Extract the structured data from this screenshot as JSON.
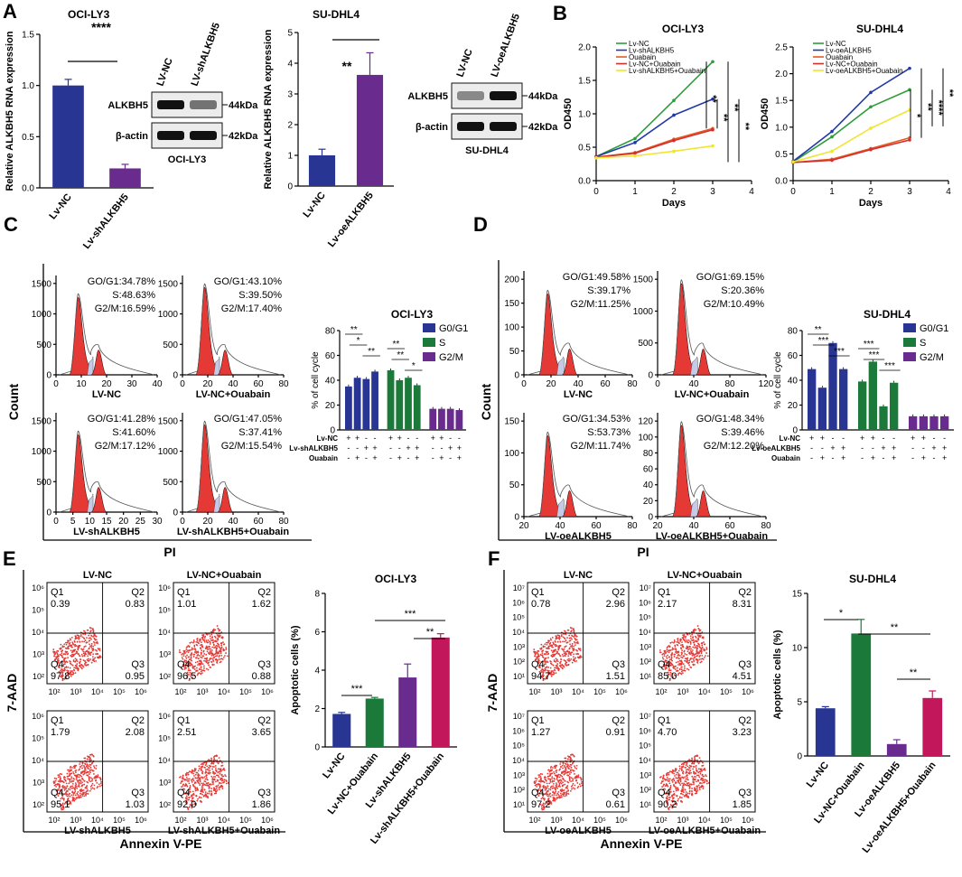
{
  "figure": {
    "panel_letters": [
      "A",
      "B",
      "C",
      "D",
      "E",
      "F"
    ],
    "panel_A": {
      "western": {
        "ocily3": {
          "lanes": [
            "LV-NC",
            "LV-shALKBH5"
          ],
          "rows": [
            {
              "label": "ALKBH5",
              "kda": "44kDa"
            },
            {
              "label": "β-actin",
              "kda": "42kDa"
            }
          ],
          "caption": "OCI-LY3"
        },
        "sudhl4": {
          "lanes": [
            "LV-NC",
            "LV-oeALKBH5"
          ],
          "rows": [
            {
              "label": "ALKBH5",
              "kda": "44kDa"
            },
            {
              "label": "β-actin",
              "kda": "42kDa"
            }
          ],
          "caption": "SU-DHL4"
        }
      }
    },
    "panel_C": {
      "histograms": [
        {
          "label": "LV-NC",
          "stats": [
            "GO/G1:34.78%",
            "S:48.63%",
            "G2/M:16.59%"
          ]
        },
        {
          "label": "LV-NC+Ouabain",
          "stats": [
            "GO/G1:43.10%",
            "S:39.50%",
            "G2/M:17.40%"
          ]
        },
        {
          "label": "LV-shALKBH5",
          "stats": [
            "GO/G1:41.28%",
            "S:41.60%",
            "G2/M:17.12%"
          ]
        },
        {
          "label": "LV-shALKBH5+Ouabain",
          "stats": [
            "GO/G1:47.05%",
            "S:37.41%",
            "G2/M:15.54%"
          ]
        }
      ],
      "ylabel": "Count",
      "xlabel": "PI"
    },
    "panel_D": {
      "histograms": [
        {
          "label": "LV-NC",
          "stats": [
            "GO/G1:49.58%",
            "S:39.17%",
            "G2/M:11.25%"
          ]
        },
        {
          "label": "LV-NC+Ouabain",
          "stats": [
            "GO/G1:69.15%",
            "S:20.36%",
            "G2/M:10.49%"
          ]
        },
        {
          "label": "LV-oeALKBH5",
          "stats": [
            "GO/G1:34.53%",
            "S:53.73%",
            "G2/M:11.74%"
          ]
        },
        {
          "label": "LV-oeALKBH5+Ouabain",
          "stats": [
            "GO/G1:48.34%",
            "S:39.46%",
            "G2/M:12.20%"
          ]
        }
      ],
      "ylabel": "Count",
      "xlabel": "PI"
    },
    "panel_E": {
      "plots": [
        {
          "title": "LV-NC",
          "q": [
            "0.39",
            "0.83",
            "97.8",
            "0.95"
          ]
        },
        {
          "title": "LV-NC+Ouabain",
          "q": [
            "1.01",
            "1.62",
            "96.5",
            "0.88"
          ]
        },
        {
          "title": "LV-shALKBH5",
          "q": [
            "1.79",
            "2.08",
            "95.1",
            "1.03"
          ]
        },
        {
          "title": "LV-shALKBH5+Ouabain",
          "q": [
            "2.51",
            "3.65",
            "92.0",
            "1.86"
          ]
        }
      ],
      "ylabel": "7-AAD",
      "xlabel": "Annexin V-PE"
    },
    "panel_F": {
      "plots": [
        {
          "title": "LV-NC",
          "q": [
            "0.78",
            "2.96",
            "94.7",
            "1.51"
          ]
        },
        {
          "title": "LV-NC+Ouabain",
          "q": [
            "2.17",
            "8.31",
            "85.0",
            "4.51"
          ]
        },
        {
          "title": "LV-oeALKBH5",
          "q": [
            "1.27",
            "0.91",
            "97.2",
            "0.61"
          ]
        },
        {
          "title": "LV-oeALKBH5+Ouabain",
          "q": [
            "4.70",
            "3.23",
            "90.2",
            "1.85"
          ]
        }
      ],
      "ylabel": "7-AAD",
      "xlabel": "Annexin V-PE"
    },
    "quadrant_names": [
      "Q1",
      "Q2",
      "Q4",
      "Q3"
    ]
  },
  "colors": {
    "blue": "#283593",
    "purple": "#6a2b8e",
    "green": "#1b7a3a",
    "magenta": "#c2185b",
    "red": "#e53935",
    "line_green": "#2e9d3a",
    "line_blue": "#2238a8",
    "line_orange": "#e55a1c",
    "line_red": "#d32f2f",
    "line_yellow": "#f0e530"
  },
  "chart_data": [
    {
      "id": "A1",
      "type": "bar",
      "title": "OCI-LY3",
      "categories": [
        "Lv-NC",
        "Lv-shALKBH5"
      ],
      "values": [
        1.0,
        0.19
      ],
      "errors": [
        0.06,
        0.04
      ],
      "colors": [
        "#283593",
        "#6a2b8e"
      ],
      "ylabel": "Relative ALKBH5 RNA expression",
      "ylim": [
        0,
        1.5
      ],
      "yticks": [
        "0.0",
        "0.5",
        "1.0",
        "1.5"
      ],
      "significance": [
        "****"
      ]
    },
    {
      "id": "A2",
      "type": "bar",
      "title": "SU-DHL4",
      "categories": [
        "Lv-NC",
        "Lv-oeALKBH5"
      ],
      "values": [
        1.0,
        3.62
      ],
      "errors": [
        0.2,
        0.72
      ],
      "colors": [
        "#283593",
        "#6a2b8e"
      ],
      "ylabel": "Relative ALKBH5 RNA expression",
      "ylim": [
        0,
        5
      ],
      "yticks": [
        "0",
        "1",
        "2",
        "3",
        "4",
        "5"
      ],
      "significance": [
        "**"
      ]
    },
    {
      "id": "B1",
      "type": "line",
      "title": "OCI-LY3",
      "xlabel": "Days",
      "ylabel": "OD450",
      "x": [
        0,
        1,
        2,
        3
      ],
      "xlim": [
        0,
        4
      ],
      "ylim": [
        0,
        2.0
      ],
      "xticks": [
        "0",
        "1",
        "2",
        "3",
        "4"
      ],
      "yticks": [
        "0.0",
        "0.5",
        "1.0",
        "1.5",
        "2.0"
      ],
      "series": [
        {
          "name": "Lv-NC",
          "values": [
            0.36,
            0.63,
            1.2,
            1.78
          ],
          "color": "#2e9d3a"
        },
        {
          "name": "Lv-shALKBH5",
          "values": [
            0.36,
            0.57,
            0.98,
            1.22
          ],
          "color": "#2238a8"
        },
        {
          "name": "Ouabain",
          "values": [
            0.35,
            0.42,
            0.62,
            0.78
          ],
          "color": "#e55a1c"
        },
        {
          "name": "Lv-NC+Ouabain",
          "values": [
            0.35,
            0.41,
            0.6,
            0.76
          ],
          "color": "#d32f2f"
        },
        {
          "name": "Lv-shALKBH5+Ouabain",
          "values": [
            0.34,
            0.37,
            0.44,
            0.52
          ],
          "color": "#f0e530"
        }
      ],
      "significance": [
        "**",
        "**",
        "**",
        "**"
      ]
    },
    {
      "id": "B2",
      "type": "line",
      "title": "SU-DHL4",
      "xlabel": "Days",
      "ylabel": "OD450",
      "x": [
        0,
        1,
        2,
        3
      ],
      "xlim": [
        0,
        4
      ],
      "ylim": [
        0,
        2.5
      ],
      "xticks": [
        "0",
        "1",
        "2",
        "3",
        "4"
      ],
      "yticks": [
        "0.0",
        "0.5",
        "1.0",
        "1.5",
        "2.0",
        "2.5"
      ],
      "series": [
        {
          "name": "Lv-NC",
          "values": [
            0.35,
            0.82,
            1.38,
            1.7
          ],
          "color": "#2e9d3a"
        },
        {
          "name": "Lv-oeALKBH5",
          "values": [
            0.36,
            0.92,
            1.65,
            2.1
          ],
          "color": "#2238a8"
        },
        {
          "name": "Ouabain",
          "values": [
            0.34,
            0.4,
            0.6,
            0.8
          ],
          "color": "#e55a1c"
        },
        {
          "name": "Lv-NC+Ouabain",
          "values": [
            0.34,
            0.38,
            0.58,
            0.76
          ],
          "color": "#d32f2f"
        },
        {
          "name": "Lv-oeALKBH5+Ouabain",
          "values": [
            0.35,
            0.55,
            0.98,
            1.32
          ],
          "color": "#f0e530"
        }
      ],
      "significance": [
        "*",
        "**",
        "****",
        "**"
      ]
    },
    {
      "id": "C_bar",
      "type": "bar",
      "title": "OCI-LY3",
      "ylabel": "% of cell cycle",
      "ylim": [
        0,
        80
      ],
      "yticks": [
        "0",
        "20",
        "40",
        "60",
        "80"
      ],
      "groups": [
        "G0/G1",
        "S",
        "G2/M"
      ],
      "colors": [
        "#283593",
        "#1b7a3a",
        "#6a2b8e"
      ],
      "series": [
        {
          "name": "G0/G1",
          "values": [
            35,
            42,
            41,
            47
          ]
        },
        {
          "name": "S",
          "values": [
            48,
            40,
            42,
            36
          ]
        },
        {
          "name": "G2/M",
          "values": [
            17,
            17,
            17,
            16
          ]
        }
      ],
      "conditions": [
        {
          "name": "Lv-NC",
          "signs": [
            "+",
            "+",
            "-",
            "-"
          ]
        },
        {
          "name": "Lv-shALKBH5",
          "signs": [
            "-",
            "-",
            "+",
            "+"
          ]
        },
        {
          "name": "Ouabain",
          "signs": [
            "-",
            "+",
            "-",
            "+"
          ]
        }
      ],
      "significance": [
        "**",
        "*",
        "**",
        "**",
        "**",
        "*"
      ]
    },
    {
      "id": "D_bar",
      "type": "bar",
      "title": "SU-DHL4",
      "ylabel": "% of cell cycle",
      "ylim": [
        0,
        80
      ],
      "yticks": [
        "0",
        "20",
        "40",
        "60",
        "80"
      ],
      "groups": [
        "G0/G1",
        "S",
        "G2/M"
      ],
      "colors": [
        "#283593",
        "#1b7a3a",
        "#6a2b8e"
      ],
      "series": [
        {
          "name": "G0/G1",
          "values": [
            49,
            34,
            70,
            49
          ]
        },
        {
          "name": "S",
          "values": [
            39,
            55,
            19,
            38
          ]
        },
        {
          "name": "G2/M",
          "values": [
            11,
            11,
            11,
            11
          ]
        }
      ],
      "conditions": [
        {
          "name": "Lv-NC",
          "signs": [
            "+",
            "+",
            "-",
            "-"
          ]
        },
        {
          "name": "Lv-oeALKBH5",
          "signs": [
            "-",
            "-",
            "+",
            "+"
          ]
        },
        {
          "name": "Ouabain",
          "signs": [
            "-",
            "+",
            "-",
            "+"
          ]
        }
      ],
      "significance": [
        "**",
        "***",
        "***",
        "***",
        "***",
        "***"
      ]
    },
    {
      "id": "E_bar",
      "type": "bar",
      "title": "OCI-LY3",
      "ylabel": "Apoptotic cells (%)",
      "categories": [
        "Lv-NC",
        "Lv-NC+Ouabain",
        "Lv-shALKBH5",
        "Lv-shALKBH5+Ouabain"
      ],
      "values": [
        1.72,
        2.52,
        3.62,
        5.7
      ],
      "errors": [
        0.08,
        0.06,
        0.7,
        0.2
      ],
      "colors": [
        "#283593",
        "#1b7a3a",
        "#6a2b8e",
        "#c2185b"
      ],
      "ylim": [
        0,
        8
      ],
      "yticks": [
        "0",
        "2",
        "4",
        "6",
        "8"
      ],
      "significance": [
        "***",
        "***",
        "**"
      ]
    },
    {
      "id": "F_bar",
      "type": "bar",
      "title": "SU-DHL4",
      "ylabel": "Apoptotic cells (%)",
      "categories": [
        "Lv-NC",
        "Lv-NC+Ouabain",
        "Lv-oeALKBH5",
        "Lv-oeALKBH5+Ouabain"
      ],
      "values": [
        4.4,
        11.3,
        1.1,
        5.35
      ],
      "errors": [
        0.15,
        1.3,
        0.4,
        0.65
      ],
      "colors": [
        "#283593",
        "#1b7a3a",
        "#6a2b8e",
        "#c2185b"
      ],
      "ylim": [
        0,
        15
      ],
      "yticks": [
        "0",
        "5",
        "10",
        "15"
      ],
      "significance": [
        "*",
        "**",
        "**"
      ]
    }
  ]
}
